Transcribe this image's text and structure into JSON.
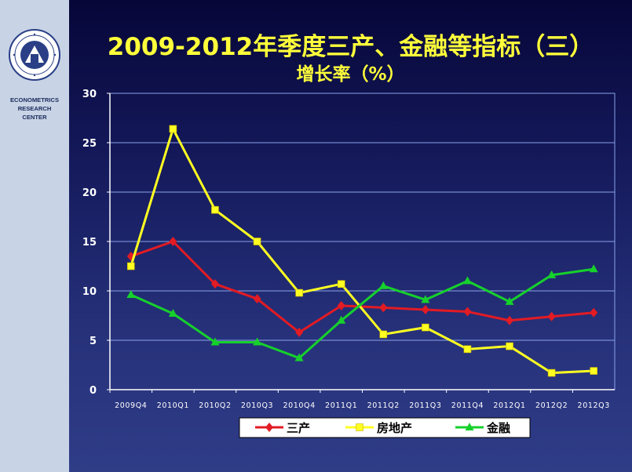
{
  "sidebar": {
    "org_line1": "ECONOMETRICS",
    "org_line2": "RESEARCH",
    "org_line3": "CENTER"
  },
  "slide": {
    "title": "2009-2012年季度三产、金融等指标（三）",
    "subtitle": "增长率（%）"
  },
  "colors": {
    "background_top": "#060638",
    "background_bottom": "#2f3c87",
    "title": "#ffff3a",
    "sidebar": "#c8d3e6",
    "grid": "#8aa2e8",
    "axis_text": "#ffffff",
    "legend_bg": "#ffffff"
  },
  "chart_data": {
    "type": "line",
    "title": "",
    "xlabel": "",
    "ylabel": "",
    "categories": [
      "2009Q4",
      "2010Q1",
      "2010Q2",
      "2010Q3",
      "2010Q4",
      "2011Q1",
      "2011Q2",
      "2011Q3",
      "2011Q4",
      "2012Q1",
      "2012Q2",
      "2012Q3"
    ],
    "ylim": [
      0,
      30
    ],
    "yticks": [
      0,
      5,
      10,
      15,
      20,
      25,
      30
    ],
    "grid": true,
    "legend_position": "bottom",
    "series": [
      {
        "name": "三产",
        "color": "#e21b24",
        "marker": "diamond",
        "values": [
          13.5,
          15.0,
          10.7,
          9.2,
          5.8,
          8.5,
          8.3,
          8.1,
          7.9,
          7.0,
          7.4,
          7.8
        ]
      },
      {
        "name": "房地产",
        "color": "#ffff22",
        "marker": "square",
        "values": [
          12.5,
          26.4,
          18.2,
          15.0,
          9.8,
          10.7,
          5.6,
          6.3,
          4.1,
          4.4,
          1.7,
          1.9
        ]
      },
      {
        "name": "金融",
        "color": "#16d12c",
        "marker": "triangle",
        "values": [
          9.6,
          7.7,
          4.8,
          4.8,
          3.2,
          7.0,
          10.5,
          9.1,
          11.0,
          8.9,
          11.6,
          12.2
        ]
      }
    ]
  }
}
